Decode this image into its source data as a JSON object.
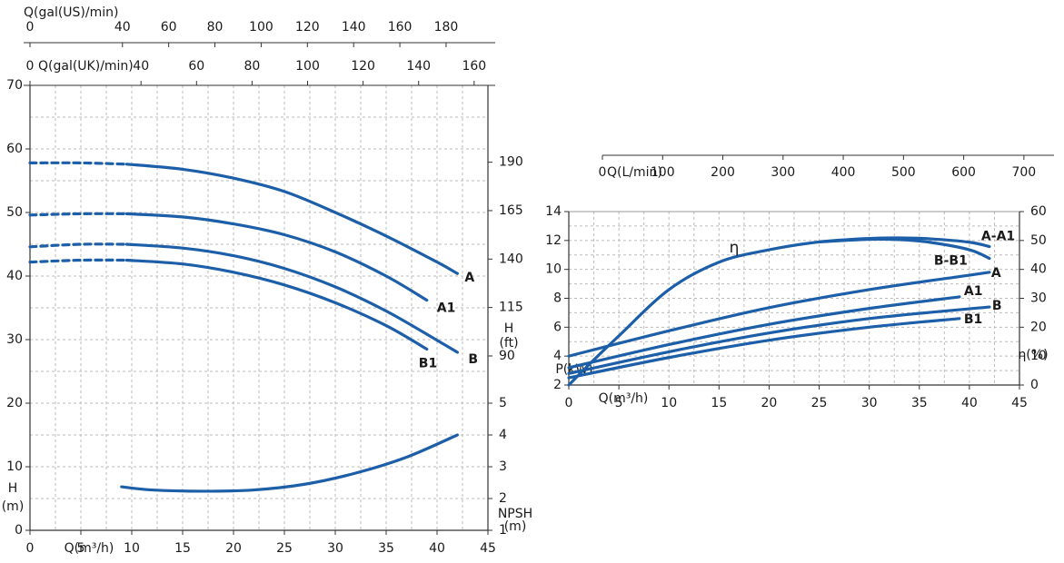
{
  "chart_data": [
    {
      "type": "line",
      "xlabel": "Q(m³/h)",
      "ylabel": [
        "H",
        "(m)"
      ],
      "y2label": [
        "H",
        "(ft)"
      ],
      "y3label": [
        "NPSH",
        "(m)"
      ],
      "top_axes": [
        {
          "label": "Q(gal(US)/min)",
          "xlim": [
            0,
            198.1
          ],
          "xticks": [
            0,
            40,
            60,
            80,
            100,
            120,
            140,
            160,
            180
          ]
        },
        {
          "label": "Q(gal(UK)/min)",
          "xlim": [
            0,
            164.97
          ],
          "xticks": [
            0,
            40,
            60,
            80,
            100,
            120,
            140,
            160
          ]
        }
      ],
      "xlim": [
        0,
        45
      ],
      "xticks": [
        0,
        5,
        10,
        15,
        20,
        25,
        30,
        35,
        40,
        45
      ],
      "ylim": [
        0,
        70
      ],
      "yticks": [
        0,
        10,
        20,
        30,
        40,
        50,
        60,
        70
      ],
      "y2lim": [
        0,
        229.66
      ],
      "y2ticks": [
        90,
        115,
        140,
        165,
        190
      ],
      "y3lim": [
        1,
        15
      ],
      "y3ticks": [
        1,
        2,
        3,
        4,
        5
      ],
      "grid": true,
      "color": "#1c5fa8",
      "series": [
        {
          "name": "A",
          "segments": [
            {
              "style": "dashed",
              "x": [
                0,
                5,
                9.5
              ],
              "values": [
                57.8,
                57.8,
                57.6
              ]
            },
            {
              "style": "solid",
              "x": [
                9.5,
                15,
                20,
                25,
                30,
                35,
                40,
                42
              ],
              "values": [
                57.6,
                56.8,
                55.4,
                53.3,
                50.0,
                46.3,
                42.2,
                40.4
              ]
            }
          ]
        },
        {
          "name": "A1",
          "segments": [
            {
              "style": "dashed",
              "x": [
                0,
                5,
                9.5
              ],
              "values": [
                49.6,
                49.8,
                49.8
              ]
            },
            {
              "style": "solid",
              "x": [
                9.5,
                15,
                20,
                25,
                30,
                35,
                39
              ],
              "values": [
                49.8,
                49.3,
                48.2,
                46.5,
                43.8,
                40.0,
                36.2
              ]
            }
          ]
        },
        {
          "name": "B",
          "segments": [
            {
              "style": "dashed",
              "x": [
                0,
                5,
                9.5
              ],
              "values": [
                44.6,
                45.0,
                45.0
              ]
            },
            {
              "style": "solid",
              "x": [
                9.5,
                15,
                20,
                25,
                30,
                35,
                40,
                42
              ],
              "values": [
                45.0,
                44.4,
                43.2,
                41.2,
                38.3,
                34.5,
                29.9,
                28.0
              ]
            }
          ]
        },
        {
          "name": "B1",
          "segments": [
            {
              "style": "dashed",
              "x": [
                0,
                5,
                9.5
              ],
              "values": [
                42.2,
                42.5,
                42.5
              ]
            },
            {
              "style": "solid",
              "x": [
                9.5,
                15,
                20,
                25,
                30,
                35,
                39
              ],
              "values": [
                42.5,
                41.9,
                40.6,
                38.6,
                35.8,
                32.2,
                28.5
              ]
            }
          ]
        }
      ],
      "npsh": {
        "axis": "y3",
        "x": [
          9,
          12,
          17,
          22,
          27,
          32,
          37,
          42
        ],
        "values": [
          2.37,
          2.27,
          2.23,
          2.27,
          2.45,
          2.8,
          3.3,
          4.0
        ]
      }
    },
    {
      "type": "line",
      "xlabel": "Q(m³/h)",
      "ylabel": [
        "P(kW)"
      ],
      "y2label": [
        "η(%)"
      ],
      "annotation": "η",
      "top_axes": [
        {
          "label": "Q(L/min)",
          "xlim": [
            0,
            750
          ],
          "xticks": [
            0,
            100,
            200,
            300,
            400,
            500,
            600,
            700
          ]
        }
      ],
      "xlim": [
        0,
        45
      ],
      "xticks": [
        0,
        5,
        10,
        15,
        20,
        25,
        30,
        35,
        40,
        45
      ],
      "ylim": [
        2,
        14
      ],
      "yticks": [
        2,
        4,
        6,
        8,
        10,
        12,
        14
      ],
      "y2lim": [
        0,
        60
      ],
      "y2ticks": [
        0,
        10,
        20,
        30,
        40,
        50,
        60
      ],
      "grid": true,
      "color": "#1c5fa8",
      "series": [
        {
          "name": "A-A1",
          "axis": "y2",
          "x": [
            0,
            2,
            5,
            10,
            15,
            20,
            25,
            30,
            33,
            36,
            40,
            42
          ],
          "values": [
            0,
            7,
            17,
            33,
            42.5,
            46.8,
            49.5,
            50.7,
            50.9,
            50.6,
            49.4,
            47.9
          ]
        },
        {
          "name": "B-B1",
          "axis": "y2",
          "x": [
            25,
            30,
            33,
            36,
            40,
            42
          ],
          "values": [
            49.5,
            50.4,
            50.3,
            49.4,
            46.8,
            43.8
          ]
        },
        {
          "name": "A",
          "x": [
            0,
            10,
            20,
            30,
            40,
            42
          ],
          "values": [
            4.0,
            5.75,
            7.35,
            8.6,
            9.6,
            9.8
          ]
        },
        {
          "name": "A1",
          "x": [
            0,
            10,
            20,
            30,
            39
          ],
          "values": [
            3.2,
            4.8,
            6.2,
            7.3,
            8.1
          ]
        },
        {
          "name": "B",
          "x": [
            0,
            10,
            20,
            30,
            42
          ],
          "values": [
            2.8,
            4.3,
            5.6,
            6.6,
            7.4
          ]
        },
        {
          "name": "B1",
          "x": [
            0,
            10,
            20,
            30,
            39
          ],
          "values": [
            2.5,
            3.9,
            5.1,
            6.0,
            6.6
          ]
        }
      ]
    }
  ]
}
